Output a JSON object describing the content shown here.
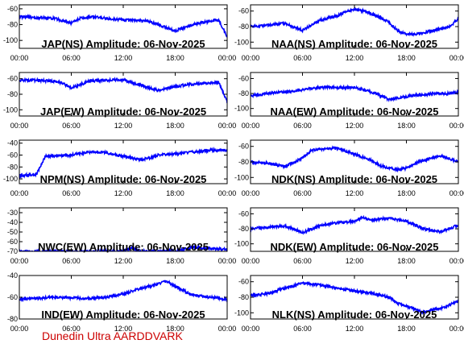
{
  "footer": {
    "credit": "Dunedin Ultra AARDDVARK"
  },
  "colors": {
    "trace": "#0000ff",
    "frame": "#000000",
    "footer_text": "#cc0000"
  },
  "x_tick_labels": [
    "00:00",
    "06:00",
    "12:00",
    "18:00",
    "00:00"
  ],
  "chart_data": [
    {
      "type": "line",
      "title": "JAP(NS) Amplitude: 06-Nov-2025",
      "ylim": [
        -110,
        -55
      ],
      "yticks": [
        -60,
        -80,
        -100
      ],
      "xlim": [
        0,
        24
      ],
      "series": [
        {
          "x": [
            0,
            2,
            4,
            5,
            6,
            7,
            8,
            10,
            12,
            14,
            15,
            16,
            17,
            18,
            19,
            20,
            21,
            22,
            23,
            24
          ],
          "values": [
            -70,
            -71,
            -72,
            -75,
            -78,
            -72,
            -70,
            -72,
            -74,
            -75,
            -76,
            -80,
            -84,
            -88,
            -84,
            -80,
            -78,
            -76,
            -74,
            -95
          ]
        }
      ]
    },
    {
      "type": "line",
      "title": "NAA(NS) Amplitude: 06-Nov-2025",
      "ylim": [
        -108,
        -52
      ],
      "yticks": [
        -60,
        -80,
        -100
      ],
      "xlim": [
        0,
        24
      ],
      "series": [
        {
          "x": [
            0,
            2,
            4,
            6,
            8,
            10,
            11,
            12,
            13,
            14,
            15,
            16,
            17,
            18,
            19,
            20,
            21,
            22,
            23,
            24
          ],
          "values": [
            -80,
            -78,
            -76,
            -85,
            -72,
            -66,
            -61,
            -58,
            -60,
            -64,
            -68,
            -75,
            -85,
            -90,
            -90,
            -88,
            -85,
            -83,
            -80,
            -70
          ]
        }
      ]
    },
    {
      "type": "line",
      "title": "JAP(EW) Amplitude: 06-Nov-2025",
      "ylim": [
        -108,
        -52
      ],
      "yticks": [
        -60,
        -80,
        -100
      ],
      "xlim": [
        0,
        24
      ],
      "series": [
        {
          "x": [
            0,
            2,
            4,
            5,
            6,
            7,
            8,
            10,
            12,
            13,
            14,
            15,
            16,
            17,
            18,
            19,
            20,
            21,
            22,
            23,
            24
          ],
          "values": [
            -62,
            -62,
            -63,
            -66,
            -72,
            -68,
            -63,
            -62,
            -61,
            -65,
            -68,
            -72,
            -75,
            -73,
            -70,
            -68,
            -67,
            -66,
            -66,
            -64,
            -90
          ]
        }
      ]
    },
    {
      "type": "line",
      "title": "NAA(EW) Amplitude: 06-Nov-2025",
      "ylim": [
        -110,
        -52
      ],
      "yticks": [
        -60,
        -80,
        -100
      ],
      "xlim": [
        0,
        24
      ],
      "series": [
        {
          "x": [
            0,
            2,
            4,
            6,
            8,
            10,
            12,
            14,
            16,
            17,
            18,
            19,
            20,
            21,
            22,
            23,
            24
          ],
          "values": [
            -83,
            -80,
            -78,
            -75,
            -72,
            -72,
            -72,
            -78,
            -88,
            -86,
            -84,
            -82,
            -82,
            -80,
            -80,
            -80,
            -78
          ]
        }
      ]
    },
    {
      "type": "line",
      "title": "NPM(NS) Amplitude: 06-Nov-2025",
      "ylim": [
        -108,
        -35
      ],
      "yticks": [
        -40,
        -60,
        -80,
        -100
      ],
      "xlim": [
        0,
        24
      ],
      "series": [
        {
          "x": [
            0,
            2,
            3,
            4,
            6,
            8,
            10,
            12,
            14,
            15,
            16,
            18,
            20,
            22,
            24
          ],
          "values": [
            -95,
            -92,
            -62,
            -62,
            -60,
            -55,
            -56,
            -62,
            -68,
            -65,
            -60,
            -58,
            -55,
            -52,
            -52
          ]
        }
      ]
    },
    {
      "type": "line",
      "title": "NDK(NS) Amplitude: 06-Nov-2025",
      "ylim": [
        -108,
        -52
      ],
      "yticks": [
        -60,
        -80,
        -100
      ],
      "xlim": [
        0,
        24
      ],
      "series": [
        {
          "x": [
            0,
            2,
            4,
            6,
            7,
            8,
            10,
            12,
            13,
            14,
            15,
            16,
            17,
            18,
            19,
            20,
            21,
            22,
            24
          ],
          "values": [
            -80,
            -82,
            -86,
            -75,
            -65,
            -64,
            -62,
            -70,
            -74,
            -78,
            -85,
            -88,
            -90,
            -88,
            -82,
            -78,
            -75,
            -72,
            -80
          ]
        }
      ]
    },
    {
      "type": "line",
      "title": "NWC(EW) Amplitude: 06-Nov-2025",
      "ylim": [
        -70,
        -25
      ],
      "yticks": [
        -30,
        -40,
        -50,
        -60,
        -70
      ],
      "xlim": [
        0,
        24
      ],
      "series": [
        {
          "x": [
            0,
            12,
            13,
            14,
            18,
            20,
            24
          ],
          "values": [
            -70,
            -70,
            -66,
            -70,
            -70,
            -66,
            -68
          ]
        }
      ]
    },
    {
      "type": "line",
      "title": "NDK(EW) Amplitude: 06-Nov-2025",
      "ylim": [
        -110,
        -52
      ],
      "yticks": [
        -60,
        -80,
        -100
      ],
      "xlim": [
        0,
        24
      ],
      "series": [
        {
          "x": [
            0,
            2,
            4,
            6,
            8,
            10,
            12,
            13,
            14,
            16,
            18,
            20,
            22,
            24
          ],
          "values": [
            -80,
            -78,
            -76,
            -85,
            -76,
            -72,
            -70,
            -65,
            -68,
            -66,
            -70,
            -80,
            -84,
            -75
          ]
        }
      ]
    },
    {
      "type": "line",
      "title": "IND(EW) Amplitude: 06-Nov-2025",
      "ylim": [
        -80,
        -40
      ],
      "yticks": [
        -40,
        -60,
        -80
      ],
      "xlim": [
        0,
        24
      ],
      "series": [
        {
          "x": [
            0,
            4,
            8,
            10,
            12,
            14,
            16,
            17,
            18,
            20,
            22,
            24
          ],
          "values": [
            -62,
            -60,
            -61,
            -60,
            -57,
            -52,
            -48,
            -45,
            -50,
            -58,
            -60,
            -62
          ]
        }
      ]
    },
    {
      "type": "line",
      "title": "NLK(NS) Amplitude: 06-Nov-2025",
      "ylim": [
        -108,
        -52
      ],
      "yticks": [
        -60,
        -80,
        -100
      ],
      "xlim": [
        0,
        24
      ],
      "series": [
        {
          "x": [
            0,
            2,
            4,
            6,
            8,
            10,
            12,
            14,
            16,
            17,
            18,
            19,
            20,
            21,
            22,
            23,
            24
          ],
          "values": [
            -78,
            -75,
            -68,
            -62,
            -64,
            -68,
            -72,
            -75,
            -80,
            -88,
            -92,
            -95,
            -100,
            -96,
            -94,
            -90,
            -85
          ]
        }
      ]
    }
  ]
}
